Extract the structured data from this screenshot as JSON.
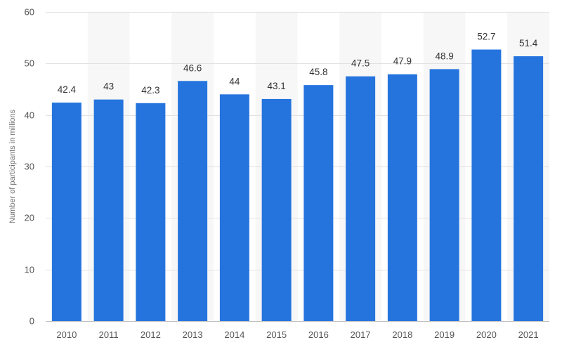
{
  "chart_data": {
    "type": "bar",
    "title": "",
    "xlabel": "",
    "ylabel": "Number of participants in millions",
    "categories": [
      "2010",
      "2011",
      "2012",
      "2013",
      "2014",
      "2015",
      "2016",
      "2017",
      "2018",
      "2019",
      "2020",
      "2021"
    ],
    "values": [
      42.4,
      43,
      42.3,
      46.6,
      44,
      43.1,
      45.8,
      47.5,
      47.9,
      48.9,
      52.7,
      51.4
    ],
    "data_labels": [
      "42.4",
      "43",
      "42.3",
      "46.6",
      "44",
      "43.1",
      "45.8",
      "47.5",
      "47.9",
      "48.9",
      "52.7",
      "51.4"
    ],
    "ylim": [
      0,
      60
    ],
    "yticks": [
      0,
      10,
      20,
      30,
      40,
      50,
      60
    ],
    "grid": true,
    "legend": "none",
    "bar_color": "#2574de",
    "band_color": "#f7f7f7"
  }
}
